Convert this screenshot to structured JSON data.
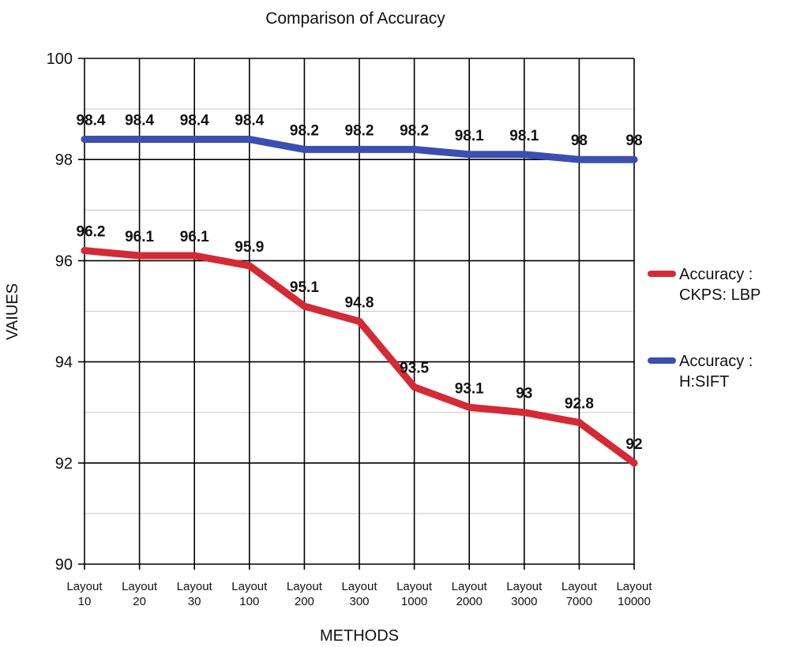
{
  "chart_data": {
    "type": "line",
    "title": "Comparison of Accuracy",
    "xlabel": "METHODS",
    "ylabel": "VAIUES",
    "categories": [
      [
        "Layout",
        "10"
      ],
      [
        "Layout",
        "20"
      ],
      [
        "Layout",
        "30"
      ],
      [
        "Layout",
        "100"
      ],
      [
        "Layout",
        "200"
      ],
      [
        "Layout",
        "300"
      ],
      [
        "Layout",
        "1000"
      ],
      [
        "Layout",
        "2000"
      ],
      [
        "Layout",
        "3000"
      ],
      [
        "Layout",
        "7000"
      ],
      [
        "Layout",
        "10000"
      ]
    ],
    "ylim": [
      90,
      100
    ],
    "yticks": [
      90,
      92,
      94,
      96,
      98,
      100
    ],
    "minor_step": 1,
    "grid": true,
    "legend_position": "right",
    "series": [
      {
        "name": "Accuracy : CKPS: LBP",
        "legend_lines": [
          "Accuracy :",
          "CKPS: LBP"
        ],
        "color": "#d42a35",
        "values": [
          96.2,
          96.1,
          96.1,
          95.9,
          95.1,
          94.8,
          93.5,
          93.1,
          93,
          92.8,
          92
        ]
      },
      {
        "name": "Accuracy : H:SIFT",
        "legend_lines": [
          "Accuracy :",
          "H:SIFT"
        ],
        "color": "#3a4fb0",
        "values": [
          98.4,
          98.4,
          98.4,
          98.4,
          98.2,
          98.2,
          98.2,
          98.1,
          98.1,
          98,
          98
        ]
      }
    ]
  }
}
